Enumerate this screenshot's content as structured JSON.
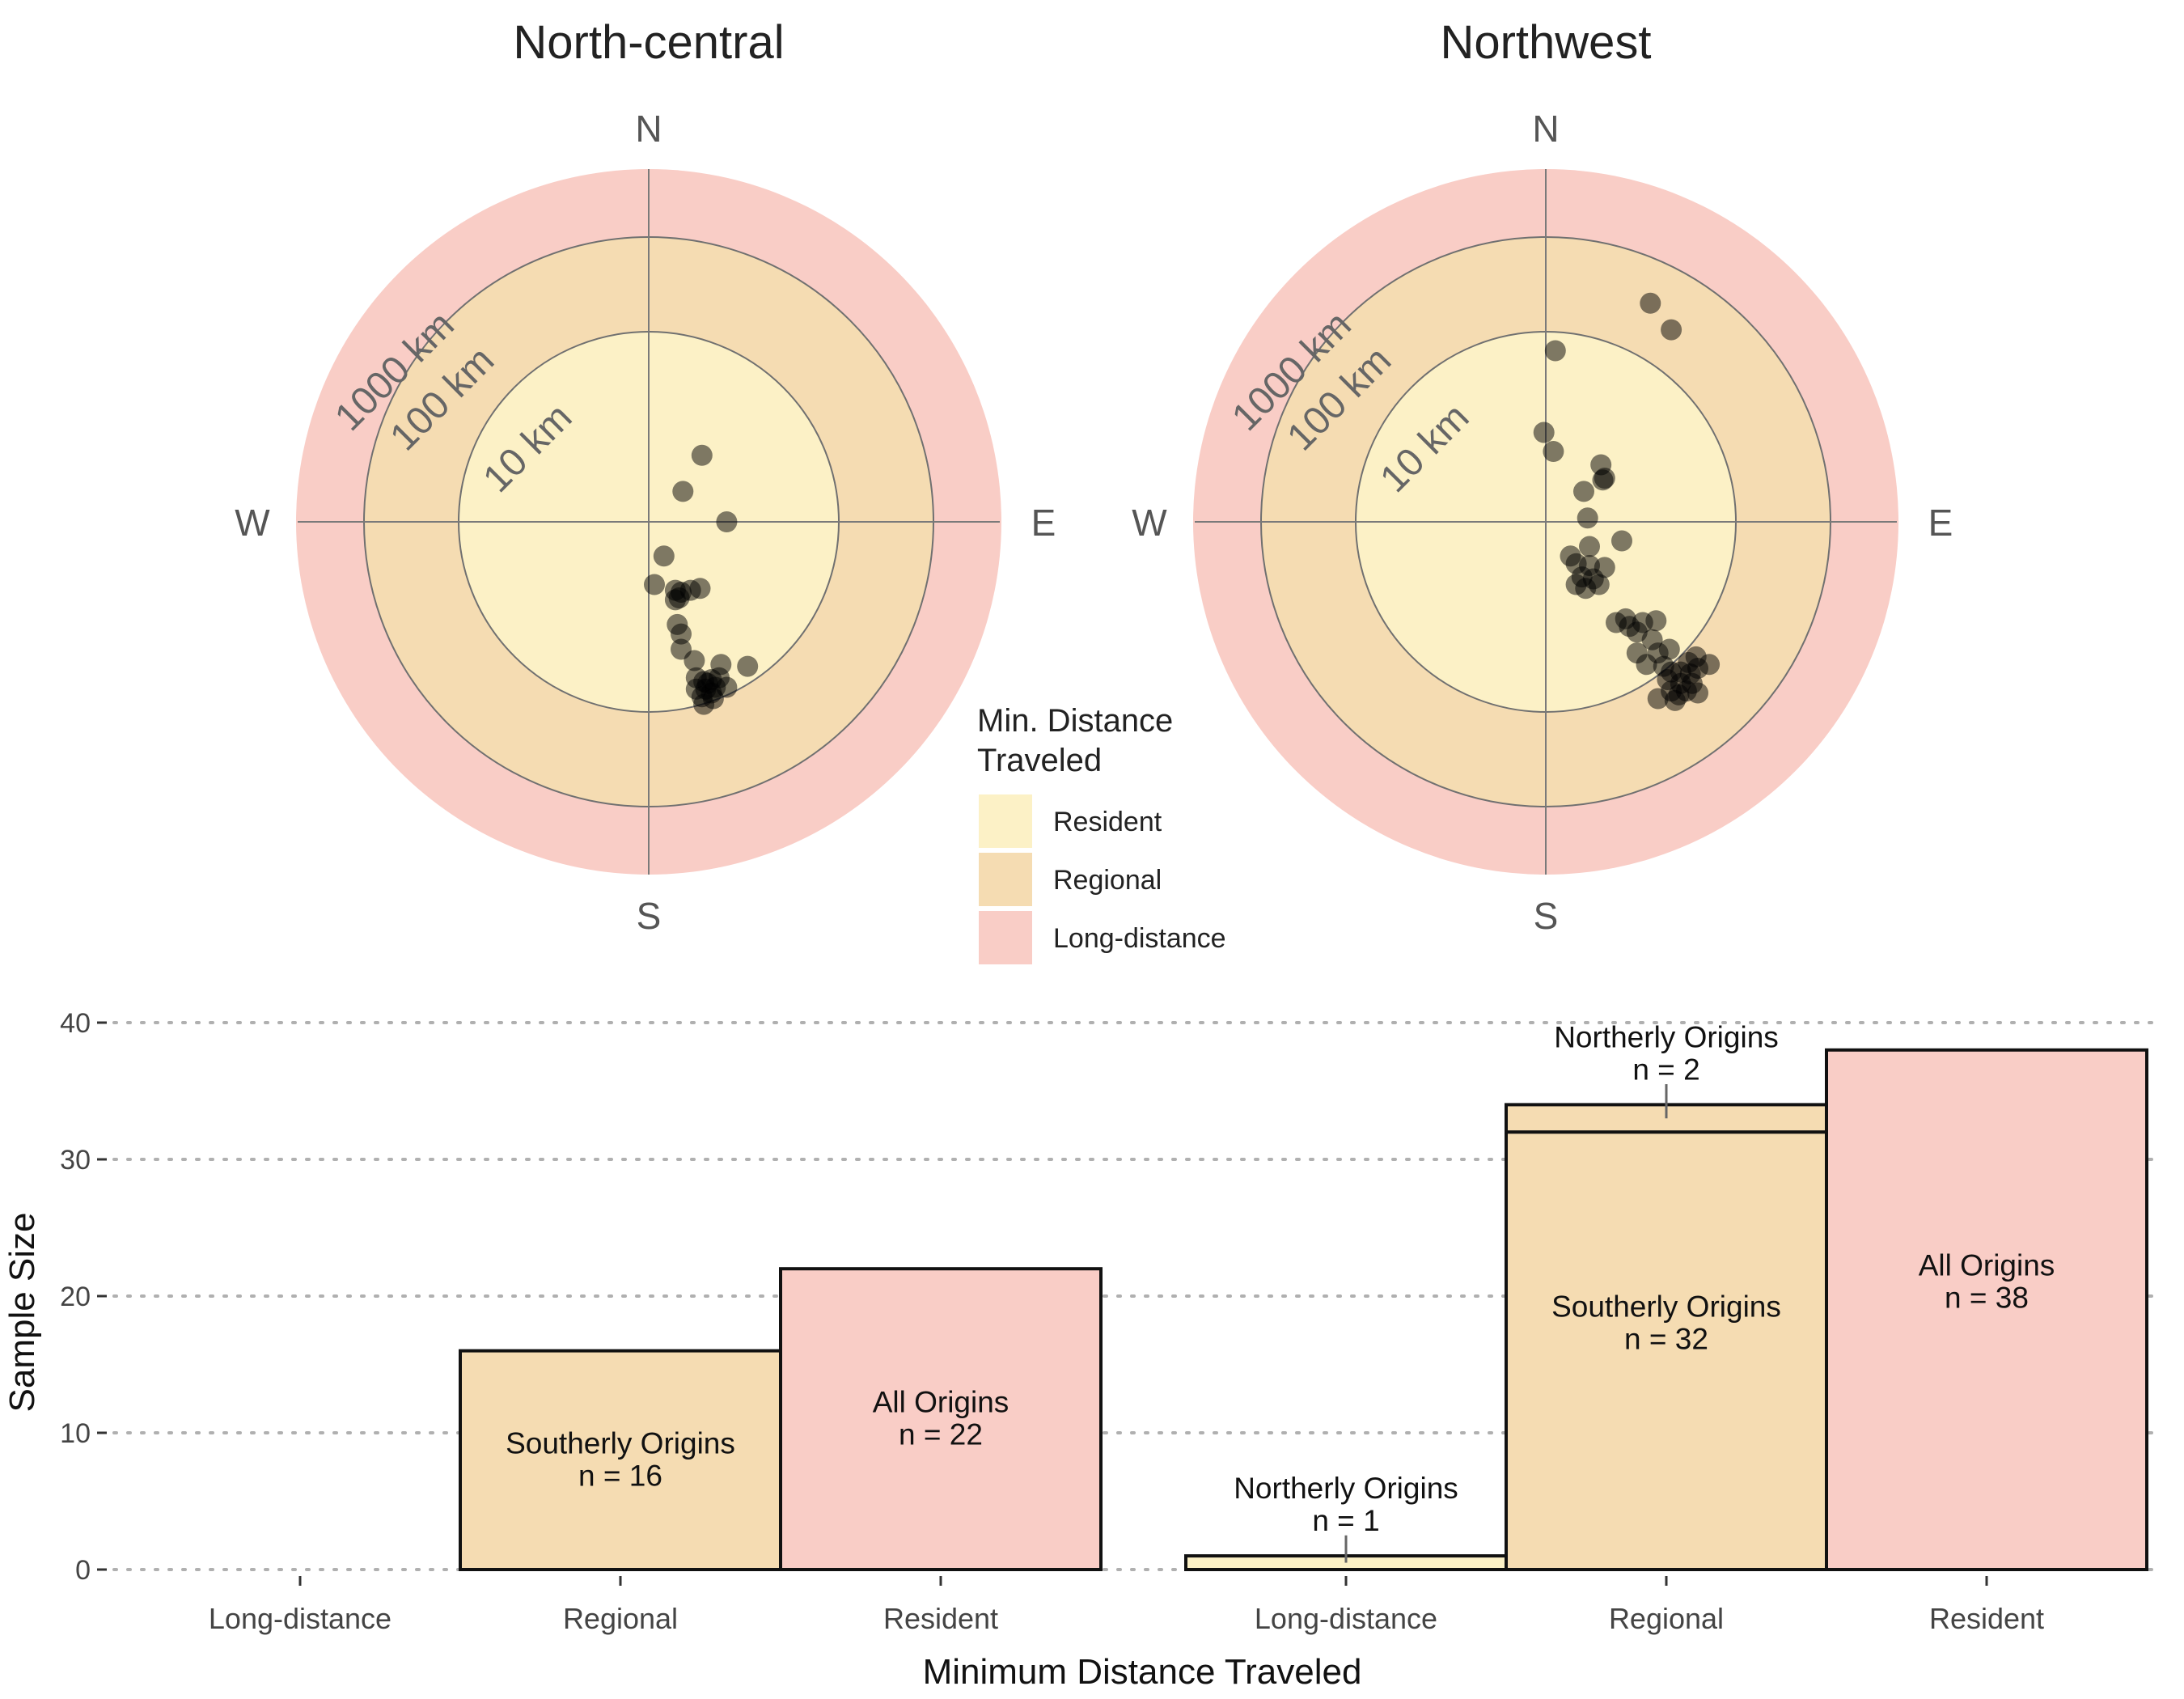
{
  "colors": {
    "resident": "#FCF1C6",
    "regional": "#F5DCB2",
    "long_distance": "#F9CDC6",
    "ring_line": "#707070",
    "axis_line": "#7a7a7a",
    "dot": "#000000",
    "text_dark": "#222222",
    "text_gray": "#555555",
    "grid": "#b0b0b0"
  },
  "legend": {
    "title_line1": "Min. Distance",
    "title_line2": "Traveled",
    "items": [
      {
        "label": "Resident",
        "color_key": "resident"
      },
      {
        "label": "Regional",
        "color_key": "regional"
      },
      {
        "label": "Long-distance",
        "color_key": "long_distance"
      }
    ]
  },
  "chart_data": [
    {
      "type": "scatter",
      "subtype": "polar",
      "title": "North-central",
      "compass": {
        "n": "N",
        "e": "E",
        "s": "S",
        "w": "W"
      },
      "ring_labels": [
        "10 km",
        "100 km",
        "1000 km"
      ],
      "points": [
        {
          "dx": 0.28,
          "dy": 0.35
        },
        {
          "dx": 0.18,
          "dy": 0.16
        },
        {
          "dx": 0.41,
          "dy": 0.0
        },
        {
          "dx": 0.08,
          "dy": -0.18
        },
        {
          "dx": 0.03,
          "dy": -0.33
        },
        {
          "dx": 0.14,
          "dy": -0.36
        },
        {
          "dx": 0.14,
          "dy": -0.41
        },
        {
          "dx": 0.17,
          "dy": -0.37
        },
        {
          "dx": 0.22,
          "dy": -0.36
        },
        {
          "dx": 0.27,
          "dy": -0.35
        },
        {
          "dx": 0.16,
          "dy": -0.4
        },
        {
          "dx": 0.15,
          "dy": -0.54
        },
        {
          "dx": 0.17,
          "dy": -0.59
        },
        {
          "dx": 0.17,
          "dy": -0.67
        },
        {
          "dx": 0.24,
          "dy": -0.73
        },
        {
          "dx": 0.38,
          "dy": -0.75
        },
        {
          "dx": 0.52,
          "dy": -0.76
        },
        {
          "dx": 0.25,
          "dy": -0.82
        },
        {
          "dx": 0.29,
          "dy": -0.84
        },
        {
          "dx": 0.33,
          "dy": -0.83
        },
        {
          "dx": 0.37,
          "dy": -0.82
        },
        {
          "dx": 0.25,
          "dy": -0.88
        },
        {
          "dx": 0.3,
          "dy": -0.88
        },
        {
          "dx": 0.35,
          "dy": -0.87
        },
        {
          "dx": 0.41,
          "dy": -0.87
        },
        {
          "dx": 0.28,
          "dy": -0.92
        },
        {
          "dx": 0.34,
          "dy": -0.93
        },
        {
          "dx": 0.29,
          "dy": -0.96
        },
        {
          "dx": 0.31,
          "dy": -0.85
        },
        {
          "dx": 0.33,
          "dy": -0.9
        }
      ]
    },
    {
      "type": "scatter",
      "subtype": "polar",
      "title": "Northwest",
      "compass": {
        "n": "N",
        "e": "E",
        "s": "S",
        "w": "W"
      },
      "ring_labels": [
        "10 km",
        "100 km",
        "1000 km"
      ],
      "points": [
        {
          "dx": 0.55,
          "dy": 1.15
        },
        {
          "dx": 0.66,
          "dy": 1.01
        },
        {
          "dx": 0.05,
          "dy": 0.9
        },
        {
          "dx": -0.01,
          "dy": 0.47
        },
        {
          "dx": 0.04,
          "dy": 0.37
        },
        {
          "dx": 0.29,
          "dy": 0.3
        },
        {
          "dx": 0.31,
          "dy": 0.23
        },
        {
          "dx": 0.3,
          "dy": 0.22
        },
        {
          "dx": 0.2,
          "dy": 0.16
        },
        {
          "dx": 0.22,
          "dy": 0.02
        },
        {
          "dx": 0.4,
          "dy": -0.1
        },
        {
          "dx": 0.23,
          "dy": -0.13
        },
        {
          "dx": 0.13,
          "dy": -0.18
        },
        {
          "dx": 0.16,
          "dy": -0.22
        },
        {
          "dx": 0.23,
          "dy": -0.23
        },
        {
          "dx": 0.31,
          "dy": -0.24
        },
        {
          "dx": 0.19,
          "dy": -0.29
        },
        {
          "dx": 0.25,
          "dy": -0.3
        },
        {
          "dx": 0.16,
          "dy": -0.33
        },
        {
          "dx": 0.21,
          "dy": -0.35
        },
        {
          "dx": 0.28,
          "dy": -0.33
        },
        {
          "dx": 0.37,
          "dy": -0.53
        },
        {
          "dx": 0.42,
          "dy": -0.51
        },
        {
          "dx": 0.44,
          "dy": -0.55
        },
        {
          "dx": 0.51,
          "dy": -0.53
        },
        {
          "dx": 0.58,
          "dy": -0.52
        },
        {
          "dx": 0.48,
          "dy": -0.58
        },
        {
          "dx": 0.56,
          "dy": -0.62
        },
        {
          "dx": 0.48,
          "dy": -0.69
        },
        {
          "dx": 0.59,
          "dy": -0.69
        },
        {
          "dx": 0.65,
          "dy": -0.67
        },
        {
          "dx": 0.53,
          "dy": -0.75
        },
        {
          "dx": 0.62,
          "dy": -0.76
        },
        {
          "dx": 0.75,
          "dy": -0.74
        },
        {
          "dx": 0.79,
          "dy": -0.71
        },
        {
          "dx": 0.66,
          "dy": -0.79
        },
        {
          "dx": 0.71,
          "dy": -0.79
        },
        {
          "dx": 0.76,
          "dy": -0.8
        },
        {
          "dx": 0.64,
          "dy": -0.83
        },
        {
          "dx": 0.71,
          "dy": -0.85
        },
        {
          "dx": 0.77,
          "dy": -0.85
        },
        {
          "dx": 0.66,
          "dy": -0.89
        },
        {
          "dx": 0.74,
          "dy": -0.89
        },
        {
          "dx": 0.8,
          "dy": -0.9
        },
        {
          "dx": 0.59,
          "dy": -0.93
        },
        {
          "dx": 0.7,
          "dy": -0.91
        },
        {
          "dx": 0.68,
          "dy": -0.94
        },
        {
          "dx": 0.8,
          "dy": -0.77
        },
        {
          "dx": 0.86,
          "dy": -0.75
        }
      ]
    },
    {
      "type": "bar",
      "ylabel": "Sample Size",
      "xlabel": "Minimum Distance Traveled",
      "ylim": [
        0,
        40
      ],
      "yticks": [
        0,
        10,
        20,
        30,
        40
      ],
      "grid": "horizontal dotted",
      "panels": [
        {
          "categories": [
            "Long-distance",
            "Regional",
            "Resident"
          ],
          "bars": [
            {
              "category_index": 0,
              "segments": []
            },
            {
              "category_index": 1,
              "segments": [
                {
                  "from": 0,
                  "to": 16,
                  "color_key": "regional"
                }
              ]
            },
            {
              "category_index": 2,
              "segments": [
                {
                  "from": 0,
                  "to": 22,
                  "color_key": "long_distance"
                }
              ]
            }
          ],
          "annotations": [
            {
              "category_index": 1,
              "line1": "Southerly Origins",
              "line2": "n = 16",
              "y": 8.5,
              "kind": "inside"
            },
            {
              "category_index": 2,
              "line1": "All Origins",
              "line2": "n = 22",
              "y": 11.5,
              "kind": "inside"
            }
          ]
        },
        {
          "categories": [
            "Long-distance",
            "Regional",
            "Resident"
          ],
          "bars": [
            {
              "category_index": 0,
              "segments": [
                {
                  "from": 0,
                  "to": 1,
                  "color_key": "resident"
                }
              ]
            },
            {
              "category_index": 1,
              "segments": [
                {
                  "from": 0,
                  "to": 32,
                  "color_key": "regional"
                },
                {
                  "from": 32,
                  "to": 34,
                  "color_key": "regional"
                }
              ]
            },
            {
              "category_index": 2,
              "segments": [
                {
                  "from": 0,
                  "to": 38,
                  "color_key": "long_distance"
                }
              ]
            }
          ],
          "annotations": [
            {
              "category_index": 0,
              "line1": "Northerly Origins",
              "line2": "n = 1",
              "y": 5.2,
              "kind": "above",
              "leader_from": 0.5,
              "leader_to": 2.5
            },
            {
              "category_index": 1,
              "line1": "Southerly Origins",
              "line2": "n = 32",
              "y": 18.5,
              "kind": "inside"
            },
            {
              "category_index": 1,
              "line1": "Northerly Origins",
              "line2": "n = 2",
              "y": 38.2,
              "kind": "above",
              "leader_from": 33,
              "leader_to": 35.5
            },
            {
              "category_index": 2,
              "line1": "All Origins",
              "line2": "n = 38",
              "y": 21.5,
              "kind": "inside"
            }
          ]
        }
      ]
    }
  ]
}
